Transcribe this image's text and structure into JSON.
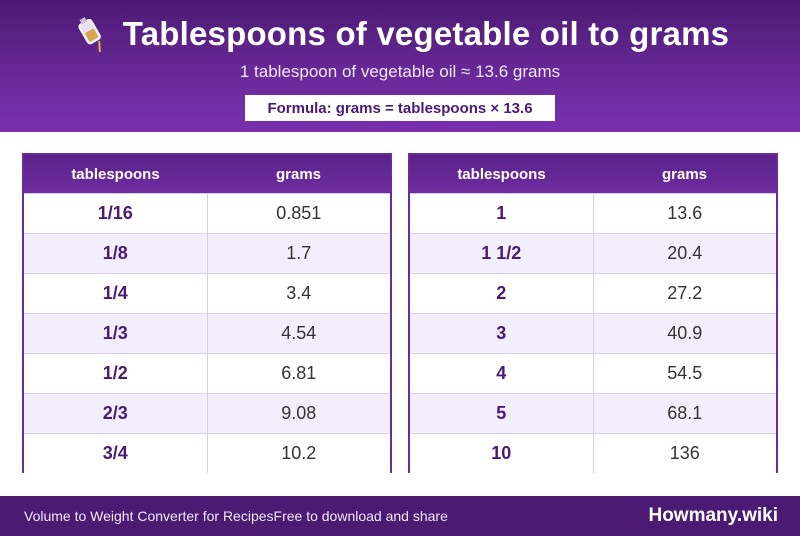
{
  "header": {
    "title": "Tablespoons of vegetable oil to grams",
    "subtitle": "1 tablespoon of vegetable oil ≈ 13.6 grams",
    "formula": "Formula: grams = tablespoons × 13.6",
    "icon": "oil-bottle-icon"
  },
  "colors": {
    "brand_purple": "#4b1a73",
    "header_purple": "#6a2a9a",
    "row_alt": "#f3eefb"
  },
  "tables": [
    {
      "headers": [
        "tablespoons",
        "grams"
      ],
      "rows": [
        {
          "tbsp": "1/16",
          "grams": "0.851"
        },
        {
          "tbsp": "1/8",
          "grams": "1.7"
        },
        {
          "tbsp": "1/4",
          "grams": "3.4"
        },
        {
          "tbsp": "1/3",
          "grams": "4.54"
        },
        {
          "tbsp": "1/2",
          "grams": "6.81"
        },
        {
          "tbsp": "2/3",
          "grams": "9.08"
        },
        {
          "tbsp": "3/4",
          "grams": "10.2"
        }
      ]
    },
    {
      "headers": [
        "tablespoons",
        "grams"
      ],
      "rows": [
        {
          "tbsp": "1",
          "grams": "13.6"
        },
        {
          "tbsp": "1 1/2",
          "grams": "20.4"
        },
        {
          "tbsp": "2",
          "grams": "27.2"
        },
        {
          "tbsp": "3",
          "grams": "40.9"
        },
        {
          "tbsp": "4",
          "grams": "54.5"
        },
        {
          "tbsp": "5",
          "grams": "68.1"
        },
        {
          "tbsp": "10",
          "grams": "136"
        }
      ]
    }
  ],
  "footer": {
    "left_text": "Volume to Weight Converter for Recipes",
    "middle_text": "Free to download and share",
    "brand": "Howmany.wiki"
  }
}
